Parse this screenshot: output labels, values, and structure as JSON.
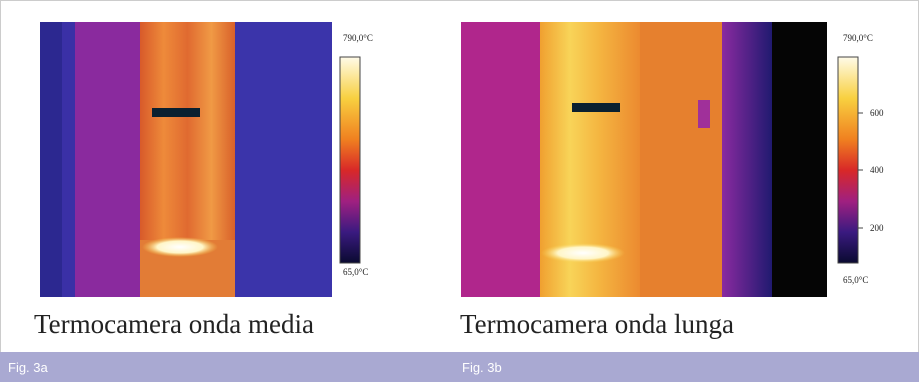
{
  "panels": [
    {
      "scale_max": "790,0°C",
      "scale_min": "65,0°C",
      "scale_ticks": [],
      "caption": "Termocamera onda media",
      "figure_label": "Fig. 3a"
    },
    {
      "scale_max": "790,0°C",
      "scale_min": "65,0°C",
      "scale_ticks": [
        "600",
        "400",
        "200"
      ],
      "caption": "Termocamera onda lunga",
      "figure_label": "Fig. 3b"
    }
  ]
}
